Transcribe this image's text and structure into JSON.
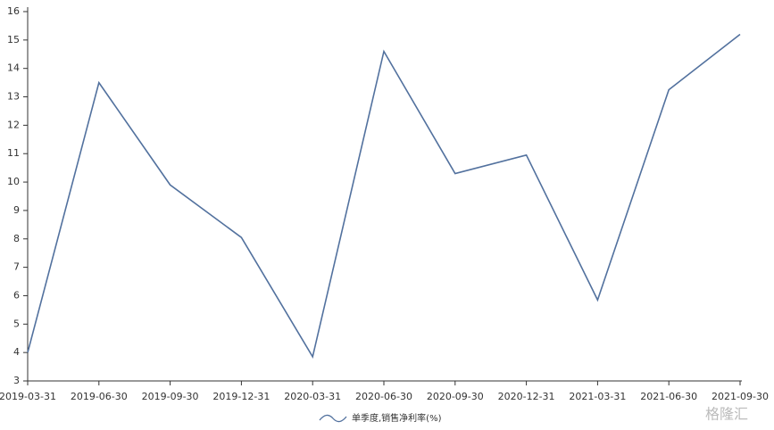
{
  "chart_data": {
    "type": "line",
    "x": [
      "2019-03-31",
      "2019-06-30",
      "2019-09-30",
      "2019-12-31",
      "2020-03-31",
      "2020-06-30",
      "2020-09-30",
      "2020-12-31",
      "2021-03-31",
      "2021-06-30",
      "2021-09-30"
    ],
    "series": [
      {
        "name": "单季度,销售净利率(%)",
        "color": "#52719e",
        "values": [
          4.0,
          13.5,
          9.9,
          8.05,
          3.85,
          14.6,
          10.3,
          10.95,
          5.85,
          13.25,
          15.2
        ]
      }
    ],
    "ylim": [
      3,
      16
    ],
    "yticks": [
      3,
      4,
      5,
      6,
      7,
      8,
      9,
      10,
      11,
      12,
      13,
      14,
      15,
      16
    ],
    "legend": "bottom",
    "watermark": "格隆汇"
  }
}
